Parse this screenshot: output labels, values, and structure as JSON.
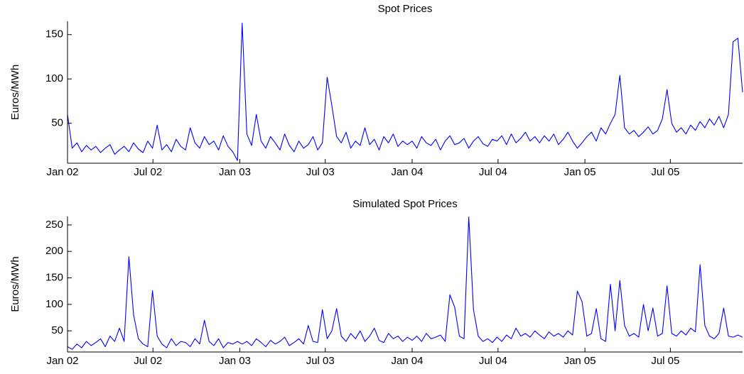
{
  "chart_data": [
    {
      "type": "line",
      "title": "Spot Prices",
      "y_label": "Euros/MWh",
      "color": "#0000ff",
      "x": [
        0,
        10,
        20,
        30,
        40,
        50,
        60,
        70,
        80,
        90,
        100,
        110,
        120,
        130,
        140,
        150,
        160,
        170,
        180,
        190,
        200,
        210,
        220,
        230,
        240,
        250,
        260,
        270,
        280,
        290,
        300,
        310,
        320,
        330,
        340,
        350,
        360,
        370,
        380,
        390,
        400,
        410,
        420,
        430,
        440,
        450,
        460,
        470,
        480,
        490,
        500,
        510,
        520,
        530,
        540,
        550,
        560,
        570,
        580,
        590,
        600,
        610,
        620,
        630,
        640,
        650,
        660,
        670,
        680,
        690,
        700,
        710,
        720,
        730,
        740,
        750,
        760,
        770,
        780,
        790,
        800,
        810,
        820,
        830,
        840,
        850,
        860,
        870,
        880,
        890,
        900,
        910,
        920,
        930,
        940,
        950,
        960,
        970,
        980,
        990,
        1000,
        1010,
        1020,
        1030,
        1040,
        1050,
        1060,
        1070,
        1080,
        1090,
        1100,
        1110,
        1120,
        1130,
        1140,
        1150,
        1160,
        1170,
        1180,
        1190,
        1200,
        1210,
        1220,
        1230,
        1240,
        1250,
        1260,
        1270,
        1280,
        1290,
        1300,
        1310,
        1320,
        1330,
        1340,
        1350,
        1360,
        1370,
        1380,
        1390,
        1400,
        1410,
        1420,
        1430
      ],
      "values": [
        60,
        22,
        28,
        18,
        25,
        20,
        24,
        17,
        22,
        26,
        15,
        20,
        24,
        18,
        28,
        21,
        17,
        30,
        22,
        48,
        20,
        26,
        18,
        32,
        24,
        20,
        45,
        28,
        22,
        35,
        26,
        30,
        20,
        36,
        24,
        18,
        8,
        163,
        38,
        25,
        60,
        30,
        22,
        35,
        28,
        20,
        38,
        25,
        18,
        30,
        22,
        26,
        35,
        20,
        28,
        102,
        70,
        35,
        28,
        40,
        22,
        30,
        25,
        45,
        26,
        32,
        20,
        35,
        28,
        38,
        24,
        30,
        26,
        30,
        22,
        35,
        28,
        25,
        32,
        20,
        30,
        36,
        26,
        28,
        33,
        22,
        30,
        35,
        27,
        24,
        32,
        30,
        36,
        26,
        38,
        28,
        33,
        40,
        30,
        35,
        28,
        36,
        30,
        38,
        26,
        32,
        40,
        30,
        22,
        28,
        35,
        40,
        30,
        45,
        38,
        50,
        60,
        104,
        45,
        38,
        42,
        35,
        40,
        46,
        38,
        42,
        55,
        88,
        50,
        40,
        45,
        38,
        48,
        42,
        52,
        45,
        55,
        48,
        58,
        45,
        60,
        142,
        146,
        85
      ],
      "xlim": [
        0,
        1430
      ],
      "xticks": [
        {
          "value": 0,
          "label": "Jan 02"
        },
        {
          "value": 181,
          "label": "Jul 02"
        },
        {
          "value": 365,
          "label": "Jan 03"
        },
        {
          "value": 546,
          "label": "Jul 03"
        },
        {
          "value": 730,
          "label": "Jan 04"
        },
        {
          "value": 912,
          "label": "Jul 04"
        },
        {
          "value": 1096,
          "label": "Jan 05"
        },
        {
          "value": 1277,
          "label": "Jul 05"
        }
      ],
      "ylim": [
        5,
        165
      ],
      "yticks": [
        50,
        100,
        150
      ]
    },
    {
      "type": "line",
      "title": "Simulated Spot Prices",
      "y_label": "Euros/MWh",
      "color": "#0000ff",
      "x": [
        0,
        10,
        20,
        30,
        40,
        50,
        60,
        70,
        80,
        90,
        100,
        110,
        120,
        130,
        140,
        150,
        160,
        170,
        180,
        190,
        200,
        210,
        220,
        230,
        240,
        250,
        260,
        270,
        280,
        290,
        300,
        310,
        320,
        330,
        340,
        350,
        360,
        370,
        380,
        390,
        400,
        410,
        420,
        430,
        440,
        450,
        460,
        470,
        480,
        490,
        500,
        510,
        520,
        530,
        540,
        550,
        560,
        570,
        580,
        590,
        600,
        610,
        620,
        630,
        640,
        650,
        660,
        670,
        680,
        690,
        700,
        710,
        720,
        730,
        740,
        750,
        760,
        770,
        780,
        790,
        800,
        810,
        820,
        830,
        840,
        850,
        860,
        870,
        880,
        890,
        900,
        910,
        920,
        930,
        940,
        950,
        960,
        970,
        980,
        990,
        1000,
        1010,
        1020,
        1030,
        1040,
        1050,
        1060,
        1070,
        1080,
        1090,
        1100,
        1110,
        1120,
        1130,
        1140,
        1150,
        1160,
        1170,
        1180,
        1190,
        1200,
        1210,
        1220,
        1230,
        1240,
        1250,
        1260,
        1270,
        1280,
        1290,
        1300,
        1310,
        1320,
        1330,
        1340,
        1350,
        1360,
        1370,
        1380,
        1390,
        1400,
        1410,
        1420,
        1430
      ],
      "values": [
        20,
        15,
        25,
        18,
        30,
        22,
        28,
        35,
        20,
        40,
        30,
        55,
        30,
        190,
        80,
        35,
        25,
        20,
        126,
        40,
        25,
        18,
        35,
        22,
        30,
        28,
        20,
        35,
        25,
        70,
        30,
        22,
        35,
        18,
        28,
        25,
        30,
        25,
        30,
        22,
        35,
        28,
        20,
        32,
        25,
        30,
        38,
        22,
        28,
        35,
        25,
        60,
        30,
        28,
        90,
        35,
        50,
        92,
        40,
        30,
        45,
        35,
        50,
        30,
        40,
        55,
        32,
        28,
        45,
        35,
        40,
        30,
        38,
        32,
        40,
        30,
        45,
        35,
        38,
        42,
        30,
        118,
        95,
        40,
        35,
        265,
        90,
        40,
        30,
        35,
        28,
        38,
        30,
        42,
        35,
        55,
        40,
        45,
        38,
        50,
        42,
        35,
        48,
        40,
        45,
        38,
        50,
        42,
        125,
        105,
        40,
        45,
        92,
        35,
        30,
        138,
        50,
        145,
        60,
        40,
        45,
        38,
        100,
        50,
        93,
        40,
        45,
        135,
        45,
        40,
        50,
        42,
        55,
        48,
        175,
        60,
        40,
        35,
        45,
        93,
        40,
        38,
        42,
        38
      ],
      "xlim": [
        0,
        1430
      ],
      "xticks": [
        {
          "value": 0,
          "label": "Jan 02"
        },
        {
          "value": 181,
          "label": "Jul 02"
        },
        {
          "value": 365,
          "label": "Jan 03"
        },
        {
          "value": 546,
          "label": "Jul 03"
        },
        {
          "value": 730,
          "label": "Jan 04"
        },
        {
          "value": 912,
          "label": "Jul 04"
        },
        {
          "value": 1096,
          "label": "Jan 05"
        },
        {
          "value": 1277,
          "label": "Jul 05"
        }
      ],
      "ylim": [
        10,
        266
      ],
      "yticks": [
        50,
        100,
        150,
        200,
        250
      ]
    }
  ]
}
